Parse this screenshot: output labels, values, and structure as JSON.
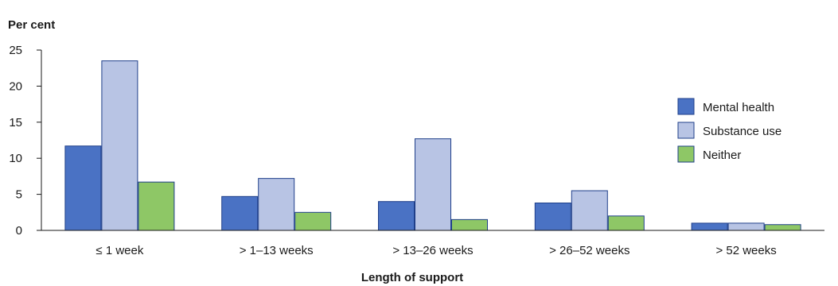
{
  "chart_data": {
    "type": "bar",
    "title": "",
    "ylabel": "Per cent",
    "xlabel": "Length of support",
    "ylim": [
      0,
      25
    ],
    "yticks": [
      0,
      5,
      10,
      15,
      20,
      25
    ],
    "grid": false,
    "legend_position": "top-right",
    "categories": [
      "≤ 1 week",
      "> 1–13 weeks",
      "> 13–26 weeks",
      "> 26–52 weeks",
      "> 52 weeks"
    ],
    "series": [
      {
        "name": "Mental health",
        "color": "#4a72c4",
        "values": [
          11.7,
          4.7,
          4.0,
          3.8,
          1.0
        ]
      },
      {
        "name": "Substance use",
        "color": "#b8c4e4",
        "values": [
          23.5,
          7.2,
          12.7,
          5.5,
          1.0
        ]
      },
      {
        "name": "Neither",
        "color": "#8ec766",
        "values": [
          6.7,
          2.5,
          1.5,
          2.0,
          0.8
        ]
      }
    ]
  }
}
